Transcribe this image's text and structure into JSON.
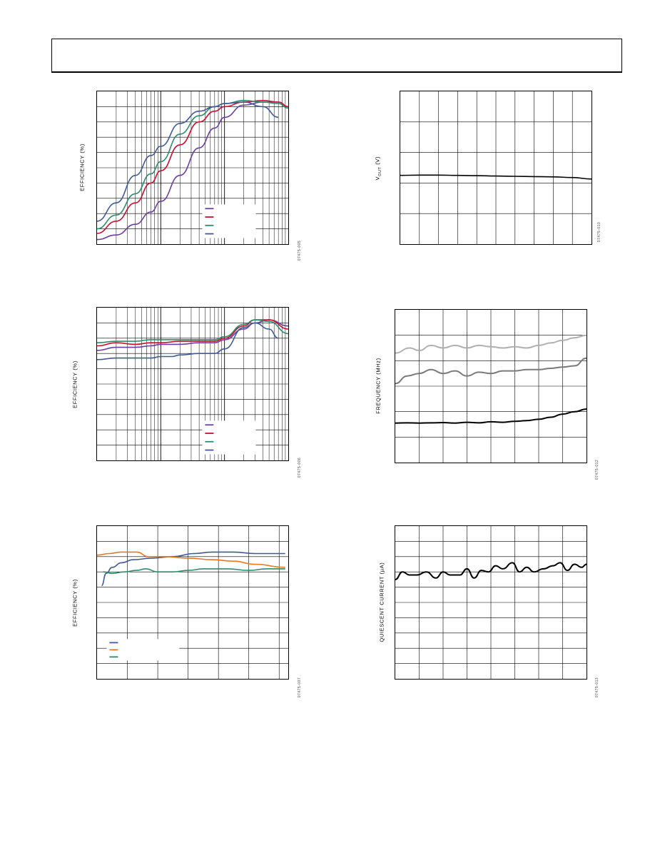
{
  "colors": {
    "purple": "#6a3fa0",
    "red": "#c8102e",
    "green": "#2e8b6a",
    "blue": "#3f5a9a",
    "orange": "#e87722",
    "light_gray": "#b0b0b0",
    "mid_gray": "#7a7a7a",
    "black": "#000000"
  },
  "chart_data": [
    {
      "id": "eff_log_1",
      "type": "line",
      "xscale": "log",
      "xlim": [
        1,
        1000
      ],
      "ylim": [
        0,
        100
      ],
      "grid": true,
      "ylabel": "EFFICIENCY (%)",
      "figcode": "07475-005",
      "legend_placement": "center-right",
      "series": [
        {
          "color_key": "purple",
          "x": [
            1,
            2,
            4,
            7,
            10,
            20,
            40,
            70,
            100,
            200,
            400,
            700,
            1000
          ],
          "y": [
            3,
            6,
            13,
            21,
            28,
            45,
            63,
            76,
            83,
            91,
            93,
            93,
            90
          ]
        },
        {
          "color_key": "red",
          "x": [
            1,
            2,
            4,
            7,
            10,
            20,
            40,
            70,
            100,
            200,
            400,
            700,
            1000
          ],
          "y": [
            7,
            15,
            27,
            40,
            48,
            65,
            80,
            87,
            90,
            93,
            94,
            93,
            90
          ]
        },
        {
          "color_key": "green",
          "x": [
            1,
            2,
            4,
            7,
            10,
            20,
            40,
            70,
            100,
            200,
            400,
            700,
            1000
          ],
          "y": [
            10,
            19,
            33,
            46,
            54,
            72,
            84,
            90,
            92,
            94,
            93,
            92,
            89
          ]
        },
        {
          "color_key": "blue",
          "x": [
            1,
            2,
            4,
            7,
            10,
            20,
            40,
            70,
            100,
            200,
            400,
            700
          ],
          "y": [
            15,
            27,
            45,
            58,
            64,
            79,
            87,
            90,
            92,
            93,
            90,
            83
          ]
        }
      ]
    },
    {
      "id": "vout",
      "type": "line",
      "xlim": [
        0,
        10
      ],
      "ylim": [
        0,
        5
      ],
      "grid": true,
      "ylabel": "V",
      "ylabel_sub": "OUT",
      "ylabel_unit": " (V)",
      "figcode": "07475-010",
      "series": [
        {
          "color_key": "black",
          "x": [
            0,
            1,
            2,
            3,
            4,
            5,
            6,
            7,
            8,
            9,
            10
          ],
          "y": [
            2.25,
            2.26,
            2.26,
            2.25,
            2.24,
            2.23,
            2.22,
            2.21,
            2.2,
            2.18,
            2.13
          ]
        }
      ]
    },
    {
      "id": "eff_log_2",
      "type": "line",
      "xscale": "log",
      "xlim": [
        1,
        1000
      ],
      "ylim": [
        0,
        100
      ],
      "grid": true,
      "ylabel": "EFFICIENCY (%)",
      "figcode": "07475-006",
      "legend_placement": "center-right",
      "series": [
        {
          "color_key": "purple",
          "x": [
            1,
            2,
            4,
            7,
            10,
            20,
            40,
            70,
            100,
            200,
            300,
            500,
            1000
          ],
          "y": [
            72,
            74,
            74,
            75,
            76,
            76,
            77,
            77,
            79,
            86,
            90,
            92,
            88
          ]
        },
        {
          "color_key": "red",
          "x": [
            1,
            2,
            4,
            7,
            10,
            20,
            40,
            70,
            100,
            200,
            300,
            500,
            1000
          ],
          "y": [
            75,
            77,
            76,
            77,
            77,
            78,
            78,
            78,
            80,
            88,
            92,
            92,
            86
          ]
        },
        {
          "color_key": "green",
          "x": [
            1,
            2,
            4,
            7,
            10,
            20,
            40,
            70,
            100,
            200,
            300,
            500,
            1000
          ],
          "y": [
            77,
            78,
            78,
            79,
            79,
            79,
            79,
            79,
            81,
            89,
            92,
            91,
            83
          ]
        },
        {
          "color_key": "blue",
          "x": [
            1,
            2,
            4,
            7,
            10,
            15,
            20,
            40,
            70,
            100,
            200,
            300,
            500,
            700
          ],
          "y": [
            66,
            67,
            67,
            67,
            68,
            68,
            69,
            70,
            70,
            73,
            87,
            90,
            86,
            80
          ]
        }
      ]
    },
    {
      "id": "freq",
      "type": "line",
      "xlim": [
        0,
        8
      ],
      "ylim": [
        0,
        6
      ],
      "grid": true,
      "ylabel": "FREQUENCY (MHz)",
      "figcode": "07475-012",
      "series": [
        {
          "color_key": "light_gray",
          "x": [
            0,
            0.6,
            1,
            1.5,
            2,
            2.5,
            3,
            3.5,
            4,
            4.5,
            5,
            5.5,
            6,
            6.5,
            7,
            7.5,
            8
          ],
          "y": [
            4.3,
            4.5,
            4.4,
            4.6,
            4.5,
            4.6,
            4.5,
            4.6,
            4.55,
            4.5,
            4.55,
            4.5,
            4.6,
            4.7,
            4.8,
            4.9,
            5.0
          ]
        },
        {
          "color_key": "mid_gray",
          "x": [
            0,
            0.5,
            1,
            1.5,
            2,
            2.5,
            3,
            3.5,
            4,
            4.5,
            5,
            5.5,
            6,
            6.5,
            7,
            7.5,
            8
          ],
          "y": [
            3.1,
            3.4,
            3.5,
            3.65,
            3.5,
            3.6,
            3.4,
            3.55,
            3.5,
            3.6,
            3.6,
            3.65,
            3.65,
            3.7,
            3.75,
            3.8,
            4.1
          ]
        },
        {
          "color_key": "black",
          "x": [
            0,
            0.5,
            1,
            1.5,
            2,
            2.5,
            3,
            3.5,
            4,
            4.5,
            5,
            5.5,
            6,
            6.5,
            7,
            7.5,
            8
          ],
          "y": [
            1.55,
            1.56,
            1.55,
            1.56,
            1.57,
            1.55,
            1.58,
            1.56,
            1.6,
            1.58,
            1.62,
            1.65,
            1.7,
            1.78,
            1.9,
            2.0,
            2.1
          ]
        }
      ]
    },
    {
      "id": "eff_lin",
      "type": "line",
      "xlim": [
        0,
        6.3
      ],
      "ylim": [
        0,
        100
      ],
      "grid": true,
      "ylabel": "EFFICIENCY (%)",
      "figcode": "07475-007",
      "legend_placement": "bottom-left",
      "series": [
        {
          "color_key": "blue",
          "x": [
            0.15,
            0.3,
            0.5,
            0.8,
            1.2,
            1.8,
            2.5,
            3.2,
            3.8,
            4.5,
            5.2,
            6.2
          ],
          "y": [
            61,
            69,
            73,
            76,
            78,
            79,
            80,
            82,
            83,
            83,
            82,
            82
          ]
        },
        {
          "color_key": "orange",
          "x": [
            0,
            0.4,
            0.8,
            1.3,
            1.7,
            2.2,
            3.0,
            3.8,
            4.5,
            5.2,
            6.2
          ],
          "y": [
            81,
            82,
            83,
            83,
            80,
            80,
            79,
            78,
            77,
            75,
            73
          ]
        },
        {
          "color_key": "green",
          "x": [
            0.2,
            0.5,
            0.9,
            1.3,
            1.6,
            2.0,
            2.5,
            3.0,
            3.5,
            3.9,
            4.3,
            5.0,
            5.6,
            6.2
          ],
          "y": [
            70,
            69,
            70,
            71,
            72,
            70,
            70,
            71,
            72,
            72,
            72,
            71,
            72,
            72
          ]
        }
      ]
    },
    {
      "id": "iq",
      "type": "line",
      "xlim": [
        0,
        8
      ],
      "ylim": [
        0,
        10
      ],
      "grid": true,
      "ylabel": "QUIESCENT CURRENT (µA)",
      "figcode": "07475-013",
      "series": [
        {
          "color_key": "black",
          "x": [
            0,
            0.3,
            0.6,
            0.9,
            1.3,
            1.7,
            2.0,
            2.3,
            2.7,
            3.0,
            3.3,
            3.6,
            3.9,
            4.2,
            4.5,
            4.9,
            5.2,
            5.5,
            5.8,
            6.2,
            6.6,
            6.9,
            7.2,
            7.5,
            7.8,
            8.0
          ],
          "y": [
            6.5,
            7.0,
            6.8,
            6.8,
            7.0,
            6.6,
            7.0,
            6.8,
            6.8,
            7.2,
            6.6,
            7.1,
            7.0,
            7.4,
            7.2,
            7.6,
            7.0,
            7.3,
            7.0,
            7.2,
            7.4,
            7.6,
            7.1,
            7.5,
            7.3,
            7.5
          ]
        }
      ]
    }
  ]
}
